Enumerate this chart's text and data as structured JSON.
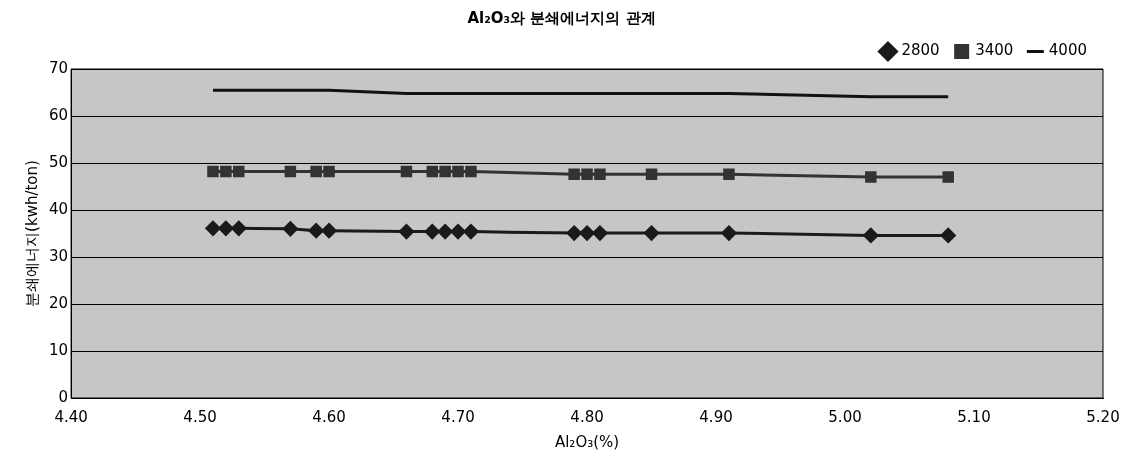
{
  "chart_data": {
    "type": "line",
    "title": "Al₂O₃와 분쇄에너지의 관계",
    "xlabel": "Al₂O₃(%)",
    "ylabel": "분쇄에너지(kwh/ton)",
    "x": [
      4.51,
      4.52,
      4.53,
      4.57,
      4.59,
      4.6,
      4.66,
      4.68,
      4.69,
      4.7,
      4.71,
      4.79,
      4.8,
      4.81,
      4.85,
      4.91,
      5.02,
      5.08
    ],
    "series": [
      {
        "name": "2800",
        "color": "#1a1a1a",
        "marker": "diamond",
        "values": [
          36.1,
          36.1,
          36.1,
          36.0,
          35.6,
          35.6,
          35.4,
          35.4,
          35.4,
          35.4,
          35.4,
          35.1,
          35.1,
          35.1,
          35.1,
          35.1,
          34.6,
          34.6
        ]
      },
      {
        "name": "3400",
        "color": "#333333",
        "marker": "square",
        "values": [
          48.2,
          48.2,
          48.2,
          48.2,
          48.2,
          48.2,
          48.2,
          48.2,
          48.2,
          48.2,
          48.2,
          47.6,
          47.6,
          47.6,
          47.6,
          47.6,
          47.0,
          47.0
        ]
      },
      {
        "name": "4000",
        "color": "#111111",
        "marker": "none",
        "values": [
          65.5,
          65.5,
          65.5,
          65.5,
          65.5,
          65.5,
          64.8,
          64.8,
          64.8,
          64.8,
          64.8,
          64.8,
          64.8,
          64.8,
          64.8,
          64.8,
          64.1,
          64.1
        ]
      }
    ],
    "xlim": [
      4.4,
      5.2
    ],
    "xticks": [
      {
        "value": 4.4,
        "label": "4.40"
      },
      {
        "value": 4.5,
        "label": "4.50"
      },
      {
        "value": 4.6,
        "label": "4.60"
      },
      {
        "value": 4.7,
        "label": "4.70"
      },
      {
        "value": 4.8,
        "label": "4.80"
      },
      {
        "value": 4.9,
        "label": "4.90"
      },
      {
        "value": 5.0,
        "label": "5.00"
      },
      {
        "value": 5.1,
        "label": "5.10"
      },
      {
        "value": 5.2,
        "label": "5.20"
      }
    ],
    "ylim": [
      0,
      70
    ],
    "yticks": [
      0,
      10,
      20,
      30,
      40,
      50,
      60,
      70
    ],
    "grid": "y",
    "legend": "top right"
  }
}
